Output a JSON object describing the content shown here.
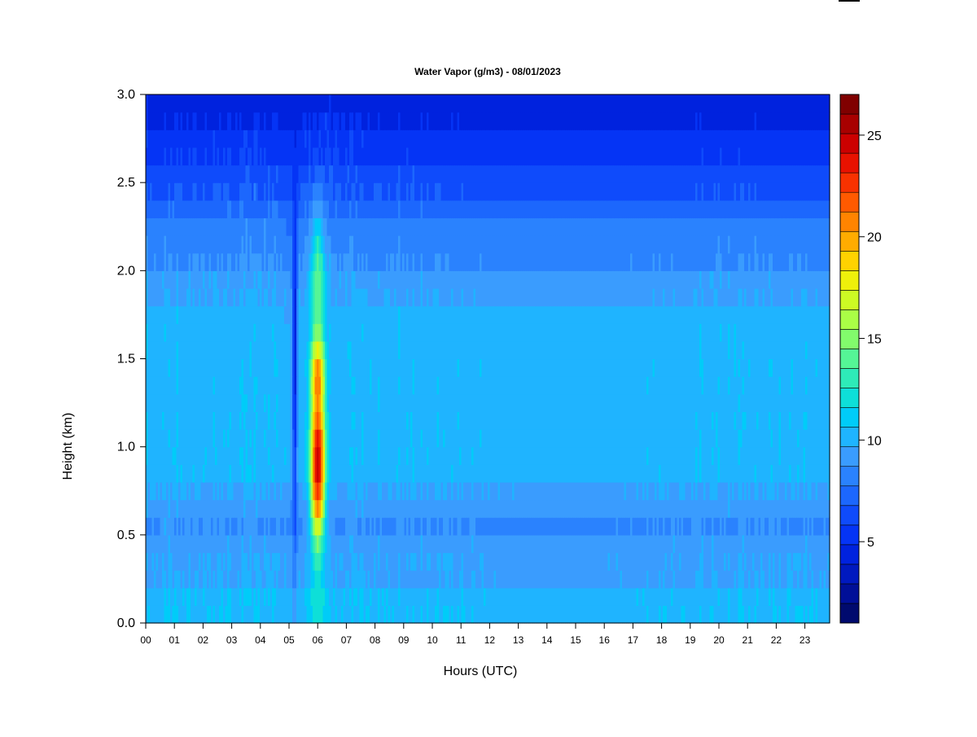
{
  "chart_data": {
    "type": "heatmap",
    "title": "Water Vapor (g/m3) - 08/01/2023",
    "xlabel": "Hours (UTC)",
    "ylabel": "Height (km)",
    "xlim": [
      0,
      23.85
    ],
    "ylim": [
      0,
      3.0
    ],
    "x_ticks": [
      "00",
      "01",
      "02",
      "03",
      "04",
      "05",
      "06",
      "07",
      "08",
      "09",
      "10",
      "11",
      "12",
      "13",
      "14",
      "15",
      "16",
      "17",
      "18",
      "19",
      "20",
      "21",
      "22",
      "23"
    ],
    "y_ticks": [
      "0.0",
      "0.5",
      "1.0",
      "1.5",
      "2.0",
      "2.5",
      "3.0"
    ],
    "colorbar": {
      "min": 1,
      "max": 27,
      "step": 1,
      "tick_values": [
        5,
        10,
        15,
        20,
        25
      ],
      "tick_labels": [
        "5",
        "10",
        "15",
        "20",
        "25"
      ],
      "colors": [
        "#000a6e",
        "#000f98",
        "#0019bf",
        "#0022de",
        "#0534f5",
        "#0f4bfb",
        "#1c67fd",
        "#2a82fe",
        "#3a9cfe",
        "#1fb4ff",
        "#00ccf8",
        "#0edfd8",
        "#2eebb8",
        "#55f596",
        "#82fb6c",
        "#aafd46",
        "#cdfa24",
        "#eef00b",
        "#ffd200",
        "#ffac00",
        "#ff8400",
        "#ff5a00",
        "#f83200",
        "#e81200",
        "#cc0000",
        "#a80000",
        "#800000"
      ]
    },
    "heights_km": [
      0.05,
      0.15,
      0.25,
      0.35,
      0.45,
      0.55,
      0.65,
      0.75,
      0.85,
      0.95,
      1.05,
      1.15,
      1.25,
      1.35,
      1.45,
      1.55,
      1.65,
      1.75,
      1.85,
      1.95,
      2.05,
      2.15,
      2.25,
      2.35,
      2.45,
      2.55,
      2.65,
      2.75,
      2.85,
      2.95
    ],
    "background_profile_g_m3": [
      10.7,
      10.6,
      9.8,
      9.8,
      9.3,
      8.9,
      9.2,
      9.9,
      10.4,
      10.4,
      10.4,
      10.3,
      10.2,
      10.3,
      10.4,
      10.3,
      10.2,
      10.0,
      9.8,
      9.5,
      8.9,
      8.4,
      8.0,
      7.4,
      6.9,
      6.3,
      5.6,
      5.2,
      4.7,
      4.1
    ],
    "hourly_offset_g_m3": [
      0.2,
      0.1,
      0.0,
      0.3,
      0.3,
      -0.5,
      0.0,
      0.3,
      0.1,
      0.1,
      0.0,
      -0.1,
      -0.3,
      -0.8,
      -0.9,
      -0.8,
      -0.7,
      -0.3,
      -0.1,
      -0.1,
      0.0,
      0.0,
      -0.1,
      0.0
    ],
    "upper_level_offset_g_m3": [
      0.0,
      0.0,
      0.0,
      0.3,
      0.4,
      -0.7,
      0.8,
      0.2,
      0.0,
      -0.1,
      -0.3,
      -0.6,
      -1.1,
      -1.5,
      -1.8,
      -1.8,
      -1.5,
      -1.0,
      -0.6,
      -0.4,
      -0.3,
      -0.5,
      -0.7,
      -0.7
    ],
    "events": [
      {
        "hour_center": 6.0,
        "hour_halfwidth": 0.3,
        "height_center_km": 0.92,
        "height_halfwidth_km": 0.55,
        "peak_g_m3": 26
      },
      {
        "hour_center": 6.0,
        "hour_halfwidth": 0.3,
        "height_center_km": 1.35,
        "height_halfwidth_km": 0.4,
        "peak_g_m3": 22
      },
      {
        "hour_center": 6.0,
        "hour_halfwidth": 0.32,
        "height_center_km": 1.9,
        "height_halfwidth_km": 0.5,
        "peak_g_m3": 15
      },
      {
        "hour_center": 6.0,
        "hour_halfwidth": 0.35,
        "height_center_km": 0.15,
        "height_halfwidth_km": 0.3,
        "peak_g_m3": 13
      },
      {
        "hour_center": 5.2,
        "hour_halfwidth": 0.1,
        "height_center_km": 1.6,
        "height_halfwidth_km": 1.4,
        "peak_g_m3": 4.5
      }
    ]
  }
}
